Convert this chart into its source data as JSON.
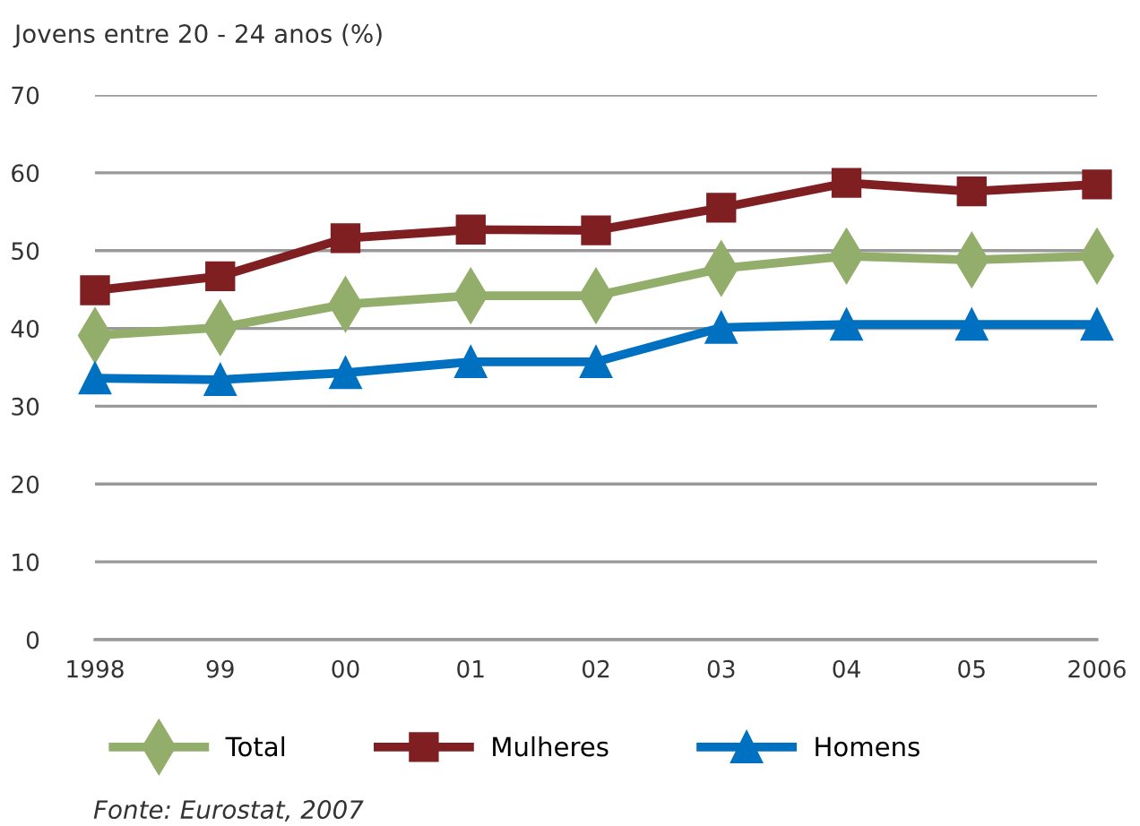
{
  "chart_data": {
    "type": "line",
    "ylabel": "Jovens entre 20 - 24 anos (%)",
    "categories": [
      "1998",
      "99",
      "00",
      "01",
      "02",
      "03",
      "04",
      "05",
      "2006"
    ],
    "series": [
      {
        "name": "Total",
        "color": "#93ae6b",
        "marker": "diamond",
        "values": [
          39.1,
          40.1,
          43.1,
          44.2,
          44.2,
          47.7,
          49.3,
          48.8,
          49.3
        ]
      },
      {
        "name": "Mulheres",
        "color": "#7f1f22",
        "marker": "square",
        "values": [
          44.9,
          46.7,
          51.6,
          52.7,
          52.6,
          55.5,
          58.7,
          57.6,
          58.5
        ]
      },
      {
        "name": "Homens",
        "color": "#0070c0",
        "marker": "triangle",
        "values": [
          33.6,
          33.4,
          34.3,
          35.7,
          35.7,
          40.1,
          40.5,
          40.5,
          40.5
        ]
      }
    ],
    "ylim": [
      0,
      70
    ],
    "yticks": [
      0,
      10,
      20,
      30,
      40,
      50,
      60,
      70
    ],
    "grid": "y",
    "legend": "bottom",
    "annotations": [
      "Fonte: Eurostat, 2007"
    ]
  }
}
